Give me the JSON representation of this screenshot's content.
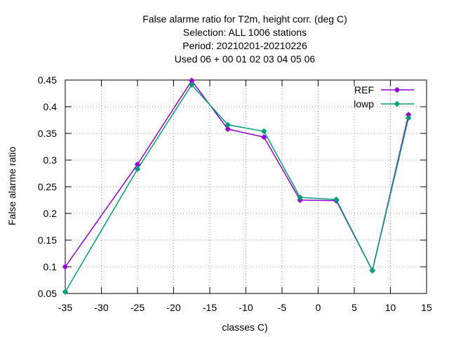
{
  "chart_data": {
    "type": "line",
    "title_lines": [
      "False alarme ratio  for T2m, height corr. (deg C)",
      "Selection: ALL   1006 stations",
      "Period: 20210201-20210226",
      "Used  06  + 00 01 02 03 04 05 06"
    ],
    "xlabel": "classes C)",
    "ylabel": "False alarme ratio",
    "xlim": [
      -35,
      15
    ],
    "ylim": [
      0.05,
      0.45
    ],
    "xticks": [
      -35,
      -30,
      -25,
      -20,
      -15,
      -10,
      -5,
      0,
      5,
      10,
      15
    ],
    "xtick_labels": [
      "-35",
      "-30",
      "-25",
      "-20",
      "-15",
      "-10",
      "-5",
      "0",
      "5",
      "10",
      "15"
    ],
    "yticks": [
      0.05,
      0.1,
      0.15,
      0.2,
      0.25,
      0.3,
      0.35,
      0.4,
      0.45
    ],
    "ytick_labels": [
      "0.05",
      "0.1",
      "0.15",
      "0.2",
      "0.25",
      "0.3",
      "0.35",
      "0.4",
      "0.45"
    ],
    "grid": true,
    "legend_position": "top-right",
    "x": [
      -35,
      -25,
      -17.5,
      -12.5,
      -7.5,
      -2.5,
      2.5,
      7.5,
      12.5
    ],
    "series": [
      {
        "name": "REF",
        "color": "#9400d3",
        "values": [
          0.1,
          0.292,
          0.449,
          0.358,
          0.343,
          0.225,
          0.224,
          0.093,
          0.385
        ]
      },
      {
        "name": "lowp",
        "color": "#009e73",
        "values": [
          0.053,
          0.283,
          0.441,
          0.366,
          0.354,
          0.23,
          0.226,
          0.093,
          0.379
        ]
      }
    ]
  }
}
